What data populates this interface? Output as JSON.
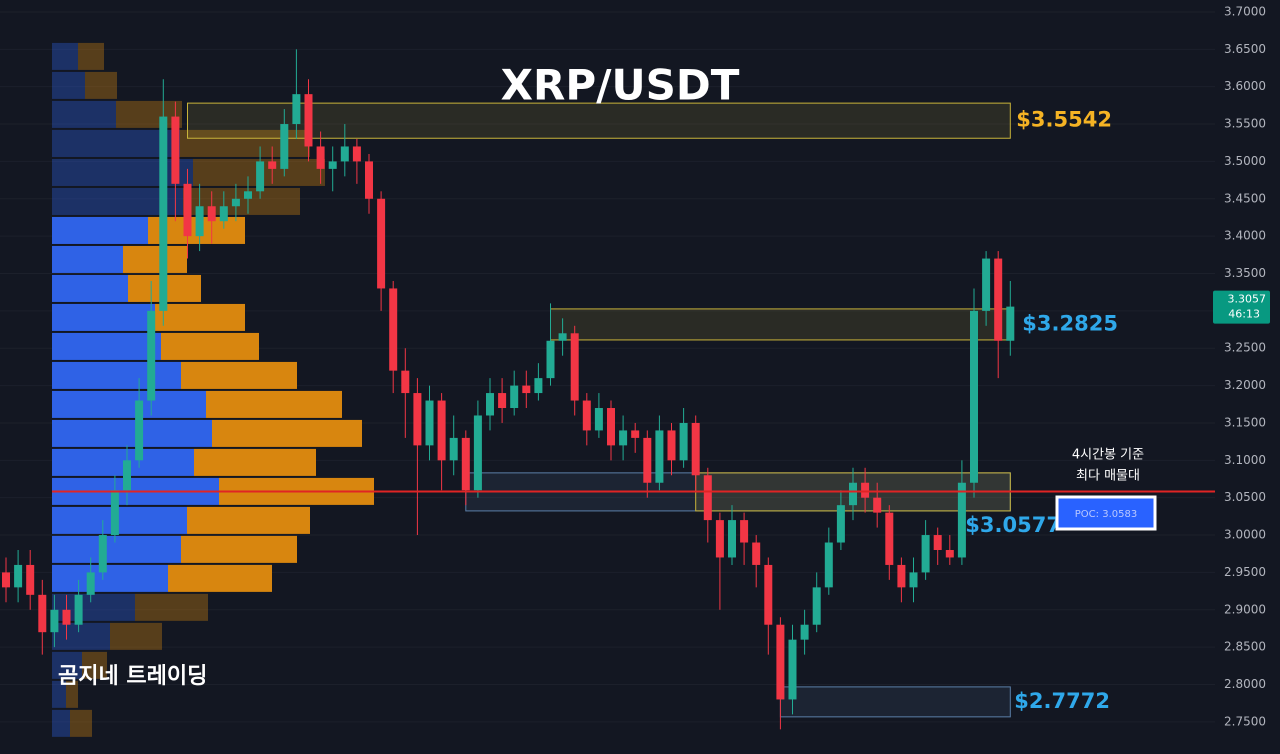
{
  "chart_data": {
    "type": "candlestick",
    "title": "XRP/USDT",
    "watermark": "곰지네 트레이딩",
    "ylim": [
      2.707,
      3.716
    ],
    "yticks": [
      {
        "value": 3.7,
        "label": "3.7000"
      },
      {
        "value": 3.65,
        "label": "3.6500"
      },
      {
        "value": 3.6,
        "label": "3.6000"
      },
      {
        "value": 3.55,
        "label": "3.5500"
      },
      {
        "value": 3.5,
        "label": "3.5000"
      },
      {
        "value": 3.45,
        "label": "3.4500"
      },
      {
        "value": 3.4,
        "label": "3.4000"
      },
      {
        "value": 3.35,
        "label": "3.3500"
      },
      {
        "value": 3.3,
        "label": "3.3000"
      },
      {
        "value": 3.25,
        "label": "3.2500"
      },
      {
        "value": 3.2,
        "label": "3.2000"
      },
      {
        "value": 3.15,
        "label": "3.1500"
      },
      {
        "value": 3.1,
        "label": "3.1000"
      },
      {
        "value": 3.05,
        "label": "3.0500"
      },
      {
        "value": 3.0,
        "label": "3.0000"
      },
      {
        "value": 2.95,
        "label": "2.9500"
      },
      {
        "value": 2.9,
        "label": "2.9000"
      },
      {
        "value": 2.85,
        "label": "2.8500"
      },
      {
        "value": 2.8,
        "label": "2.8000"
      },
      {
        "value": 2.75,
        "label": "2.7500"
      }
    ],
    "grid": true,
    "up_color": "#22ab94",
    "down_color": "#f23645",
    "open": [
      2.95,
      2.93,
      2.96,
      2.92,
      2.87,
      2.9,
      2.88,
      2.92,
      2.95,
      3.0,
      3.06,
      3.1,
      3.18,
      3.3,
      3.56,
      3.47,
      3.4,
      3.44,
      3.42,
      3.44,
      3.45,
      3.46,
      3.5,
      3.49,
      3.55,
      3.59,
      3.52,
      3.49,
      3.5,
      3.52,
      3.5,
      3.45,
      3.33,
      3.22,
      3.19,
      3.12,
      3.18,
      3.1,
      3.13,
      3.06,
      3.16,
      3.19,
      3.17,
      3.2,
      3.19,
      3.21,
      3.26,
      3.27,
      3.18,
      3.14,
      3.17,
      3.12,
      3.14,
      3.13,
      3.07,
      3.14,
      3.1,
      3.15,
      3.08,
      3.02,
      2.97,
      3.02,
      2.99,
      2.96,
      2.88,
      2.78,
      2.86,
      2.88,
      2.93,
      2.99,
      3.04,
      3.07,
      3.05,
      3.03,
      2.96,
      2.93,
      2.95,
      3.0,
      2.98,
      2.97,
      3.07,
      3.3,
      3.37,
      3.26
    ],
    "high": [
      2.97,
      2.98,
      2.98,
      2.94,
      2.92,
      2.92,
      2.94,
      2.97,
      3.02,
      3.08,
      3.12,
      3.21,
      3.34,
      3.61,
      3.58,
      3.49,
      3.47,
      3.46,
      3.46,
      3.47,
      3.48,
      3.52,
      3.52,
      3.57,
      3.65,
      3.61,
      3.54,
      3.52,
      3.55,
      3.53,
      3.51,
      3.46,
      3.34,
      3.25,
      3.21,
      3.2,
      3.19,
      3.16,
      3.14,
      3.18,
      3.21,
      3.21,
      3.22,
      3.22,
      3.23,
      3.31,
      3.29,
      3.28,
      3.19,
      3.19,
      3.18,
      3.16,
      3.15,
      3.14,
      3.16,
      3.15,
      3.17,
      3.16,
      3.09,
      3.03,
      3.04,
      3.03,
      3.0,
      2.97,
      2.89,
      2.88,
      2.9,
      2.95,
      3.01,
      3.06,
      3.09,
      3.09,
      3.07,
      3.04,
      2.97,
      2.97,
      3.02,
      3.01,
      3.0,
      3.1,
      3.33,
      3.38,
      3.38,
      3.34
    ],
    "low": [
      2.91,
      2.91,
      2.9,
      2.84,
      2.85,
      2.86,
      2.87,
      2.91,
      2.94,
      2.99,
      3.04,
      3.09,
      3.16,
      3.28,
      3.42,
      3.37,
      3.38,
      3.39,
      3.41,
      3.42,
      3.43,
      3.45,
      3.47,
      3.48,
      3.53,
      3.5,
      3.47,
      3.46,
      3.48,
      3.47,
      3.43,
      3.3,
      3.19,
      3.13,
      3.0,
      3.1,
      3.06,
      3.08,
      3.04,
      3.05,
      3.14,
      3.15,
      3.16,
      3.17,
      3.18,
      3.2,
      3.24,
      3.16,
      3.12,
      3.13,
      3.1,
      3.1,
      3.11,
      3.05,
      3.06,
      3.08,
      3.09,
      3.06,
      2.99,
      2.9,
      2.96,
      2.96,
      2.93,
      2.84,
      2.74,
      2.76,
      2.84,
      2.87,
      2.92,
      2.98,
      3.02,
      3.03,
      3.01,
      2.94,
      2.91,
      2.91,
      2.94,
      2.96,
      2.96,
      2.96,
      3.05,
      3.28,
      3.21,
      3.24
    ],
    "close": [
      2.93,
      2.96,
      2.92,
      2.87,
      2.9,
      2.88,
      2.92,
      2.95,
      3.0,
      3.06,
      3.1,
      3.18,
      3.3,
      3.56,
      3.47,
      3.4,
      3.44,
      3.42,
      3.44,
      3.45,
      3.46,
      3.5,
      3.49,
      3.55,
      3.59,
      3.52,
      3.49,
      3.5,
      3.52,
      3.5,
      3.45,
      3.33,
      3.22,
      3.19,
      3.12,
      3.18,
      3.1,
      3.13,
      3.06,
      3.16,
      3.19,
      3.17,
      3.2,
      3.19,
      3.21,
      3.26,
      3.27,
      3.18,
      3.14,
      3.17,
      3.12,
      3.14,
      3.13,
      3.07,
      3.14,
      3.1,
      3.15,
      3.08,
      3.02,
      2.97,
      3.02,
      2.99,
      2.96,
      2.88,
      2.78,
      2.86,
      2.88,
      2.93,
      2.99,
      3.04,
      3.07,
      3.05,
      3.03,
      2.96,
      2.93,
      2.95,
      3.0,
      2.98,
      2.97,
      3.07,
      3.3,
      3.37,
      3.26,
      3.3057
    ],
    "countdown": "46:13",
    "volume_profile": {
      "bins": [
        3.6599,
        3.6211,
        3.5823,
        3.5435,
        3.5046,
        3.4658,
        3.427,
        3.3882,
        3.3494,
        3.3106,
        3.2718,
        3.233,
        3.1942,
        3.1554,
        3.1166,
        3.0778,
        3.039,
        3.0002,
        2.9614,
        2.9226,
        2.8838,
        2.845,
        2.8062,
        2.7674,
        2.7286
      ],
      "buy": [
        26,
        33,
        64,
        128,
        141,
        131,
        96,
        71,
        76,
        103,
        109,
        129,
        154,
        160,
        142,
        167,
        135,
        129,
        116,
        83,
        58,
        30,
        14,
        18
      ],
      "sell": [
        26,
        32,
        66,
        130,
        132,
        117,
        97,
        64,
        73,
        90,
        98,
        116,
        136,
        150,
        122,
        155,
        123,
        116,
        104,
        73,
        52,
        25,
        12,
        22
      ],
      "buy_color": "#2f62e6",
      "sell_color": "#d8860f",
      "value_area": {
        "low": 2.9226,
        "high": 3.427
      }
    },
    "poc": {
      "value": 3.0583,
      "label": "POC: 3.0583",
      "color": "#e02424"
    },
    "annotation": [
      "4시간봉 기준",
      "최다 매물대"
    ],
    "zones": [
      {
        "label": "$3.5542",
        "color": "#c9b43a",
        "label_color": "#f5b324",
        "top": 3.578,
        "bottom": 3.531,
        "start": 15,
        "end": 83
      },
      {
        "label": "$3.2825",
        "color": "#c9b43a",
        "label_color": "#2fa8ea",
        "top": 3.3026,
        "bottom": 3.2611,
        "start": 45,
        "end": 83
      },
      {
        "color": "#5b7fa8",
        "top": 3.0832,
        "bottom": 3.0323,
        "start": 38,
        "end": 83
      },
      {
        "label": "$3.0577",
        "color": "#c9b43a",
        "label_color": "#2fa8ea",
        "top": 3.0832,
        "bottom": 3.0323,
        "start": 57,
        "end": 83
      },
      {
        "label": "$2.7772",
        "color": "#5b7fa8",
        "label_color": "#2fa8ea",
        "top": 2.7968,
        "bottom": 2.7567,
        "start": 64,
        "end": 83
      }
    ]
  }
}
